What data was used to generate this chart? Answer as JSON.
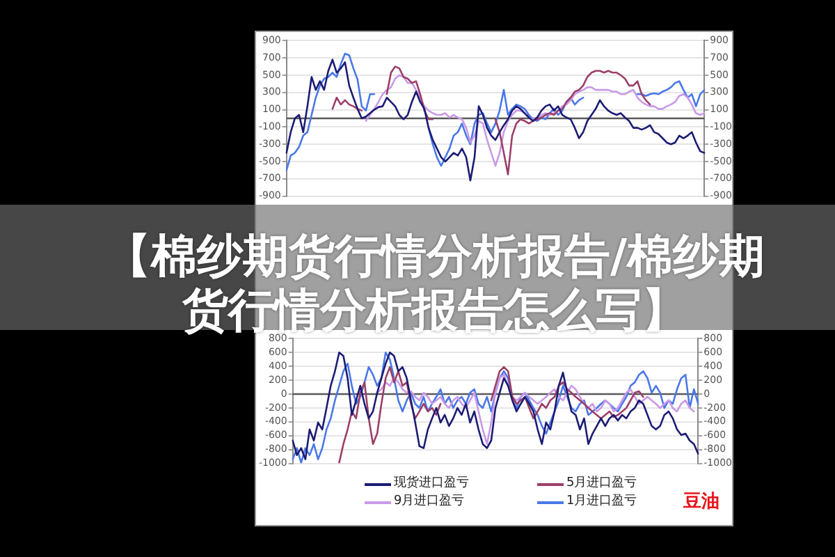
{
  "chart_data": [
    {
      "type": "line",
      "categories": [
        null,
        null,
        null,
        null,
        null,
        null,
        null,
        null,
        null,
        null,
        null,
        null,
        null,
        null,
        null,
        null,
        null,
        null,
        null,
        null,
        null,
        null,
        null,
        null,
        null,
        null,
        null,
        null,
        null,
        null,
        null,
        null,
        null,
        null,
        null,
        null,
        null,
        null,
        null,
        null,
        null,
        null,
        null,
        null,
        null,
        null,
        null,
        null,
        null,
        null,
        null,
        null,
        null,
        null,
        null,
        null,
        null,
        null,
        null,
        null,
        null,
        null,
        null,
        null,
        null,
        null,
        null,
        null,
        null,
        null,
        null,
        null,
        null,
        null,
        null,
        null,
        null,
        null,
        null,
        null,
        null,
        null,
        null,
        null,
        null,
        null,
        null,
        null,
        null,
        null,
        null,
        null,
        null,
        null,
        null,
        null,
        null,
        null,
        null,
        null,
        null
      ],
      "series": [
        {
          "color": "#1c1c74",
          "values": [
            -400,
            -160,
            0,
            40,
            -160,
            140,
            480,
            330,
            430,
            330,
            550,
            680,
            530,
            580,
            650,
            380,
            240,
            110,
            0,
            20,
            60,
            100,
            130,
            140,
            240,
            190,
            140,
            40,
            -10,
            40,
            190,
            310,
            190,
            110,
            -110,
            -250,
            -350,
            -450,
            -500,
            -450,
            -400,
            -430,
            -350,
            -450,
            -720,
            -450,
            140,
            40,
            -110,
            -200,
            -250,
            -160,
            -80,
            -10,
            90,
            140,
            110,
            60,
            10,
            -30,
            10,
            90,
            140,
            160,
            90,
            140,
            40,
            10,
            -10,
            -110,
            -230,
            -160,
            -30,
            40,
            110,
            210,
            140,
            90,
            60,
            40,
            60,
            10,
            -30,
            -110,
            -110,
            -130,
            -110,
            -80,
            -160,
            -180,
            -230,
            -280,
            -300,
            -280,
            -200,
            -230,
            -200,
            -160,
            -280,
            -380,
            -400
          ]
        },
        {
          "color": "#9c3f68",
          "values": [
            null,
            null,
            null,
            null,
            null,
            null,
            null,
            null,
            null,
            null,
            null,
            110,
            240,
            160,
            210,
            160,
            140,
            110,
            90,
            null,
            null,
            null,
            null,
            null,
            280,
            530,
            600,
            580,
            480,
            460,
            410,
            430,
            280,
            90,
            -10,
            -10,
            null,
            null,
            null,
            null,
            null,
            null,
            null,
            null,
            null,
            null,
            null,
            null,
            null,
            null,
            -10,
            -160,
            -400,
            -650,
            -200,
            -60,
            -10,
            -30,
            -60,
            -30,
            -10,
            10,
            40,
            60,
            40,
            90,
            110,
            190,
            240,
            310,
            330,
            380,
            480,
            530,
            550,
            550,
            530,
            550,
            530,
            530,
            500,
            460,
            380,
            380,
            430,
            280,
            210,
            160,
            null,
            null,
            null,
            null,
            null,
            null,
            null,
            null,
            null,
            null,
            null,
            null,
            null
          ]
        },
        {
          "color": "#c99ae8",
          "values": [
            null,
            null,
            null,
            null,
            null,
            null,
            null,
            null,
            null,
            null,
            null,
            null,
            null,
            null,
            null,
            null,
            null,
            null,
            null,
            -30,
            40,
            110,
            190,
            280,
            330,
            360,
            460,
            500,
            480,
            410,
            410,
            330,
            240,
            140,
            90,
            60,
            40,
            40,
            60,
            10,
            40,
            10,
            -10,
            -110,
            -280,
            -200,
            -30,
            -60,
            -250,
            -400,
            -550,
            -400,
            -160,
            -30,
            40,
            90,
            90,
            60,
            10,
            -10,
            10,
            40,
            60,
            40,
            60,
            90,
            140,
            160,
            210,
            280,
            310,
            330,
            360,
            360,
            330,
            330,
            330,
            330,
            310,
            310,
            280,
            280,
            310,
            330,
            240,
            190,
            160,
            140,
            140,
            110,
            110,
            140,
            160,
            190,
            260,
            280,
            240,
            160,
            60,
            40,
            60
          ]
        },
        {
          "color": "#4a78e8",
          "values": [
            -600,
            -430,
            -400,
            -330,
            -200,
            -160,
            40,
            240,
            380,
            460,
            480,
            530,
            480,
            630,
            750,
            730,
            580,
            450,
            140,
            90,
            280,
            280,
            null,
            null,
            null,
            null,
            null,
            null,
            null,
            null,
            null,
            null,
            null,
            null,
            -110,
            -300,
            -450,
            -550,
            -450,
            -350,
            -200,
            -160,
            -60,
            -200,
            -300,
            -60,
            40,
            60,
            -60,
            -160,
            -60,
            90,
            330,
            40,
            110,
            160,
            140,
            110,
            40,
            -10,
            -30,
            10,
            -10,
            60,
            110,
            40,
            90,
            190,
            240,
            160,
            210,
            240,
            null,
            null,
            null,
            null,
            null,
            null,
            null,
            null,
            null,
            null,
            null,
            null,
            280,
            280,
            260,
            280,
            290,
            280,
            310,
            330,
            360,
            410,
            430,
            330,
            240,
            280,
            140,
            280,
            330
          ]
        }
      ],
      "ylim": [
        -900,
        900
      ],
      "yticks": [
        -900,
        -700,
        -500,
        -300,
        -100,
        100,
        300,
        500,
        700,
        900
      ],
      "y2lim": [
        -900,
        900
      ],
      "y2ticks": [
        -900,
        -700,
        -500,
        -300,
        -100,
        100,
        300,
        500,
        700,
        900
      ],
      "ref_lines": [
        {
          "axis": "y",
          "value": 0,
          "color": "#595959"
        }
      ],
      "grid": "y",
      "marker": "none",
      "legend": false
    },
    {
      "type": "other",
      "title": "【棉纱期货行情分析报告/棉纱期货行情分析报告怎么写】"
    },
    {
      "type": "line",
      "categories": [
        null,
        null,
        null,
        null,
        null,
        null,
        null,
        null,
        null,
        null,
        null,
        null,
        null,
        null,
        null,
        null,
        null,
        null,
        null,
        null,
        null,
        null,
        null,
        null,
        null,
        null,
        null,
        null,
        null,
        null,
        null,
        null,
        null,
        null,
        null,
        null,
        null,
        null,
        null,
        null,
        null,
        null,
        null,
        null,
        null,
        null,
        null,
        null,
        null,
        null,
        null,
        null,
        null,
        null,
        null,
        null,
        null,
        null,
        null,
        null,
        null,
        null,
        null,
        null,
        null,
        null,
        null,
        null,
        null,
        null,
        null,
        null,
        null,
        null,
        null,
        null,
        null,
        null,
        null,
        null,
        null,
        null,
        null,
        null,
        null,
        null,
        null,
        null,
        null,
        null,
        null,
        null,
        null,
        null,
        null,
        null,
        null
      ],
      "series": [
        {
          "name": "现货进口盈亏",
          "color": "#1c1c74",
          "values": [
            -670,
            -880,
            -780,
            -940,
            -510,
            -670,
            -410,
            -510,
            -200,
            120,
            330,
            600,
            550,
            230,
            -300,
            -90,
            120,
            -140,
            -350,
            -250,
            20,
            230,
            440,
            600,
            550,
            330,
            390,
            230,
            -90,
            -410,
            -750,
            -780,
            -510,
            -350,
            -200,
            -410,
            -300,
            -460,
            -350,
            -200,
            -300,
            -140,
            -410,
            -250,
            -510,
            -720,
            -780,
            -670,
            -200,
            20,
            230,
            120,
            -90,
            -250,
            -140,
            -40,
            -140,
            -250,
            -510,
            -720,
            -410,
            -510,
            -250,
            120,
            310,
            20,
            -250,
            -300,
            -510,
            -350,
            -720,
            -570,
            -460,
            -350,
            -460,
            -350,
            -300,
            -380,
            -300,
            -350,
            -250,
            -200,
            -90,
            -140,
            -300,
            -460,
            -510,
            -460,
            -300,
            -250,
            -350,
            -510,
            -590,
            -570,
            -670,
            -720,
            -860
          ]
        },
        {
          "name": "5月进口盈亏",
          "color": "#9c3f68",
          "values": [
            null,
            null,
            null,
            null,
            null,
            null,
            null,
            null,
            null,
            null,
            null,
            -990,
            -720,
            -510,
            -250,
            -350,
            20,
            170,
            -350,
            -720,
            -570,
            -140,
            230,
            390,
            170,
            330,
            120,
            170,
            -140,
            -350,
            -250,
            -140,
            -250,
            -200,
            -300,
            -140,
            null,
            null,
            null,
            null,
            null,
            null,
            null,
            null,
            null,
            null,
            null,
            -90,
            120,
            330,
            390,
            330,
            -40,
            -140,
            -90,
            -40,
            -200,
            -350,
            -250,
            -140,
            -200,
            -90,
            -40,
            120,
            170,
            70,
            20,
            -40,
            -90,
            -140,
            -200,
            -250,
            -300,
            -350,
            -300,
            -250,
            -330,
            -300,
            -250,
            -200,
            -90,
            20,
            40,
            -40,
            null,
            null,
            null,
            null,
            null,
            null,
            null,
            null,
            null,
            null,
            null,
            null,
            null
          ]
        },
        {
          "name": "9月进口盈亏",
          "color": "#c99ae8",
          "values": [
            null,
            null,
            null,
            null,
            null,
            null,
            null,
            null,
            null,
            null,
            null,
            null,
            null,
            null,
            null,
            null,
            null,
            null,
            null,
            null,
            20,
            70,
            170,
            120,
            230,
            170,
            70,
            20,
            40,
            -40,
            -90,
            20,
            -40,
            -140,
            -90,
            -40,
            -140,
            -200,
            -90,
            -40,
            -140,
            -200,
            -90,
            20,
            -250,
            -510,
            -720,
            -410,
            20,
            230,
            280,
            120,
            -40,
            -90,
            -40,
            20,
            -40,
            -90,
            -140,
            -90,
            -40,
            20,
            70,
            -40,
            -90,
            20,
            120,
            70,
            -40,
            -140,
            -200,
            -140,
            -250,
            -200,
            -90,
            -140,
            -250,
            -200,
            -90,
            20,
            70,
            -40,
            -140,
            -90,
            -40,
            -90,
            -140,
            -200,
            -140,
            -90,
            -200,
            -250,
            -140,
            -90,
            -200,
            -250,
            null
          ]
        },
        {
          "name": "1月进口盈亏",
          "color": "#4a78e8",
          "values": [
            -940,
            -780,
            -990,
            -780,
            -880,
            -720,
            -940,
            -780,
            -510,
            -350,
            -90,
            120,
            330,
            440,
            120,
            -140,
            -40,
            170,
            390,
            280,
            120,
            230,
            600,
            500,
            230,
            -90,
            -250,
            -90,
            20,
            -140,
            -200,
            -40,
            -250,
            -140,
            -40,
            70,
            -140,
            -40,
            -200,
            -90,
            -40,
            -140,
            20,
            70,
            -140,
            -200,
            -40,
            -250,
            20,
            230,
            330,
            230,
            -90,
            -200,
            -40,
            20,
            -90,
            -200,
            -300,
            -460,
            -570,
            -410,
            -250,
            -90,
            120,
            -40,
            -200,
            -250,
            -140,
            -90,
            -300,
            -250,
            -200,
            -140,
            -90,
            -140,
            -200,
            -250,
            -140,
            -40,
            120,
            170,
            280,
            330,
            230,
            20,
            120,
            20,
            -200,
            -90,
            -140,
            70,
            230,
            280,
            -200,
            70,
            -140
          ]
        }
      ],
      "ylim": [
        -1000,
        800
      ],
      "yticks": [
        -1000,
        -800,
        -600,
        -400,
        -200,
        0,
        200,
        400,
        600,
        800
      ],
      "y2lim": [
        -1000,
        800
      ],
      "y2ticks": [
        -1000,
        -800,
        -600,
        -400,
        -200,
        0,
        200,
        400,
        600,
        800
      ],
      "ref_lines": [
        {
          "axis": "y",
          "value": 0,
          "color": "#595959"
        }
      ],
      "grid": "y",
      "marker": "none",
      "legend": "bottom",
      "annotations": [
        "豆油"
      ]
    }
  ]
}
